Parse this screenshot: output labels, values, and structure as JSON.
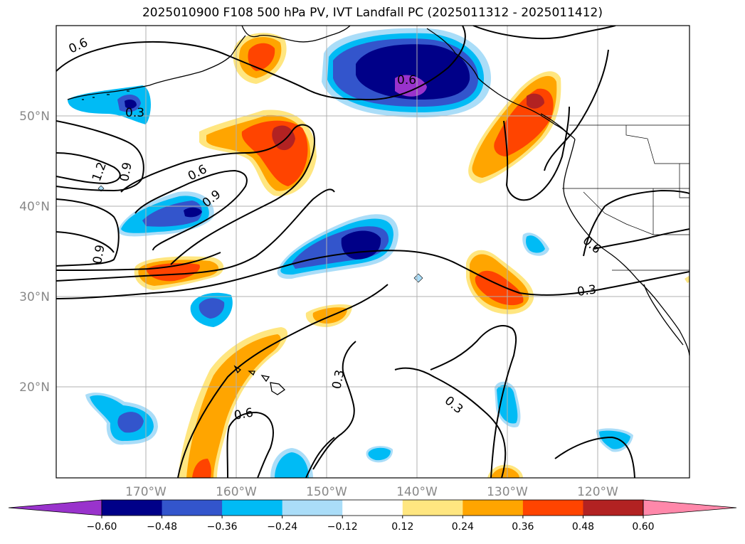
{
  "title": "2025010900 F108 500 hPa PV, IVT Landfall PC (2025011312 - 2025011412)",
  "latitude_labels": [
    "50°N",
    "40°N",
    "30°N",
    "20°N"
  ],
  "longitude_labels": [
    "170°W",
    "160°W",
    "150°W",
    "140°W",
    "130°W",
    "120°W"
  ],
  "contour_labels": [
    "0.6",
    "0.3",
    "1.2",
    "0.9",
    "0.6",
    "0.9",
    "0.9",
    "0.6",
    "0.6",
    "0.3",
    "0.3",
    "0.6",
    "0.3"
  ],
  "colorbar": {
    "tick_labels": [
      "−0.60",
      "−0.48",
      "−0.36",
      "−0.24",
      "−0.12",
      "0.12",
      "0.24",
      "0.36",
      "0.48",
      "0.60"
    ],
    "colors": [
      "#9933cc",
      "#000088",
      "#3355cc",
      "#00bbf5",
      "#aaddf8",
      "#ffffff",
      "#ffe680",
      "#ffa500",
      "#ff4400",
      "#b22222",
      "#ff88aa"
    ]
  }
}
